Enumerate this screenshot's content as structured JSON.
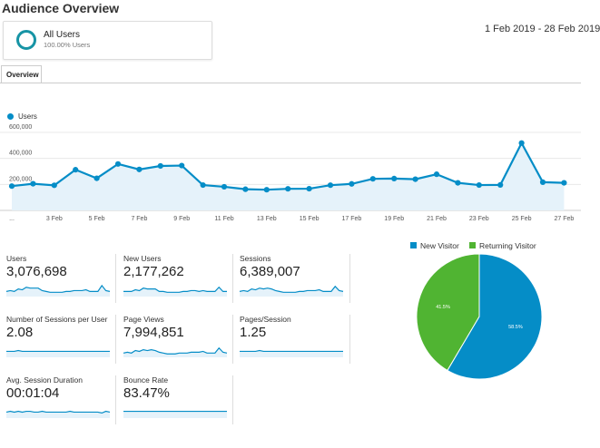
{
  "header": {
    "title": "Audience Overview",
    "date_range": "1 Feb 2019 - 28 Feb 2019"
  },
  "segment": {
    "name": "All Users",
    "percent": "100.00% Users",
    "color": "#1794a5"
  },
  "tabs": [
    {
      "label": "Overview"
    }
  ],
  "chart_data": [
    {
      "type": "area",
      "series": [
        {
          "name": "Users",
          "color": "#058dc7",
          "values": [
            187000,
            205000,
            193000,
            313000,
            247000,
            357000,
            315000,
            342000,
            345000,
            195000,
            182000,
            163000,
            159000,
            166000,
            167000,
            194000,
            204000,
            243000,
            245000,
            240000,
            278000,
            212000,
            195000,
            196000,
            518000,
            217000,
            212000
          ]
        }
      ],
      "x_tick_labels": [
        "...",
        "3 Feb",
        "5 Feb",
        "7 Feb",
        "9 Feb",
        "11 Feb",
        "13 Feb",
        "15 Feb",
        "17 Feb",
        "19 Feb",
        "21 Feb",
        "23 Feb",
        "25 Feb",
        "27 Feb"
      ],
      "y_tick_labels": [
        "200,000",
        "400,000",
        "600,000"
      ],
      "ylim": [
        0,
        600000
      ],
      "legend": "top-left"
    },
    {
      "type": "pie",
      "title": "",
      "slices": [
        {
          "label": "New Visitor",
          "value": 58.5,
          "display": "58.5%",
          "color": "#058dc7"
        },
        {
          "label": "Returning Visitor",
          "value": 41.5,
          "display": "41.5%",
          "color": "#50b432"
        }
      ],
      "legend": "top"
    }
  ],
  "metrics": [
    {
      "label": "Users",
      "value": "3,076,698",
      "spark": [
        10,
        11,
        10,
        13,
        12,
        15,
        14,
        14,
        14,
        11,
        10,
        9,
        9,
        9,
        9,
        10,
        10,
        11,
        11,
        11,
        12,
        10,
        10,
        10,
        17,
        11,
        10
      ]
    },
    {
      "label": "New Users",
      "value": "2,177,262",
      "spark": [
        10,
        10,
        10,
        12,
        11,
        14,
        13,
        13,
        13,
        10,
        10,
        9,
        9,
        9,
        9,
        10,
        10,
        11,
        11,
        10,
        11,
        10,
        10,
        10,
        15,
        10,
        10
      ]
    },
    {
      "label": "Sessions",
      "value": "6,389,007",
      "spark": [
        10,
        11,
        10,
        13,
        12,
        14,
        13,
        14,
        13,
        11,
        10,
        9,
        9,
        9,
        9,
        10,
        10,
        11,
        11,
        11,
        12,
        10,
        10,
        10,
        16,
        11,
        10
      ]
    },
    {
      "label": "Number of Sessions per User",
      "value": "2.08",
      "spark": [
        11,
        11,
        11,
        12,
        11,
        11,
        11,
        11,
        11,
        11,
        11,
        11,
        11,
        11,
        11,
        11,
        11,
        11,
        11,
        11,
        11,
        11,
        11,
        11,
        11,
        11,
        11
      ]
    },
    {
      "label": "Page Views",
      "value": "7,994,851",
      "spark": [
        9,
        10,
        9,
        12,
        11,
        13,
        12,
        13,
        12,
        10,
        9,
        8,
        8,
        8,
        9,
        9,
        9,
        10,
        10,
        10,
        11,
        9,
        9,
        9,
        15,
        10,
        9
      ]
    },
    {
      "label": "Pages/Session",
      "value": "1.25",
      "spark": [
        11,
        11,
        11,
        11,
        11,
        12,
        11,
        11,
        11,
        11,
        11,
        11,
        11,
        11,
        11,
        11,
        11,
        11,
        11,
        11,
        11,
        11,
        11,
        11,
        11,
        11,
        11
      ]
    },
    {
      "label": "Avg. Session Duration",
      "value": "00:01:04",
      "spark": [
        11,
        12,
        11,
        12,
        11,
        12,
        12,
        11,
        11,
        12,
        11,
        11,
        11,
        11,
        11,
        11,
        12,
        11,
        11,
        11,
        11,
        11,
        11,
        11,
        10,
        12,
        11
      ]
    },
    {
      "label": "Bounce Rate",
      "value": "83.47%",
      "spark": [
        12,
        12,
        12,
        12,
        12,
        12,
        12,
        12,
        12,
        12,
        12,
        12,
        12,
        12,
        12,
        12,
        12,
        12,
        12,
        12,
        12,
        12,
        12,
        12,
        12,
        12,
        12
      ]
    }
  ]
}
